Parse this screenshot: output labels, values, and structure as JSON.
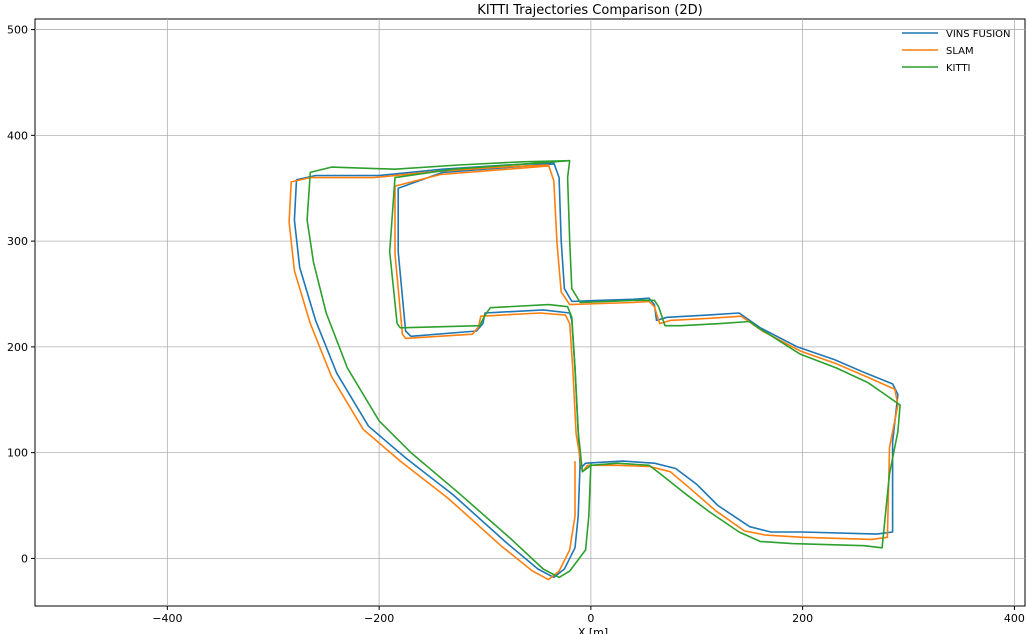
{
  "chart_data": {
    "type": "line",
    "title": "KITTI Trajectories Comparison (2D)",
    "xlabel": "X [m]",
    "ylabel": "",
    "xlim": [
      -525,
      410
    ],
    "ylim": [
      -45,
      510
    ],
    "xticks": [
      -400,
      -200,
      0,
      200,
      400
    ],
    "yticks": [
      0,
      100,
      200,
      300,
      400,
      500
    ],
    "grid": true,
    "legend_position": "top-right",
    "series": [
      {
        "name": "VINS FUSION",
        "color": "#1f77b4",
        "points": [
          [
            -10,
            95
          ],
          [
            -12,
            40
          ],
          [
            -15,
            10
          ],
          [
            -25,
            -10
          ],
          [
            -35,
            -18
          ],
          [
            -50,
            -10
          ],
          [
            -80,
            15
          ],
          [
            -130,
            60
          ],
          [
            -175,
            95
          ],
          [
            -210,
            125
          ],
          [
            -240,
            175
          ],
          [
            -260,
            225
          ],
          [
            -275,
            275
          ],
          [
            -280,
            320
          ],
          [
            -278,
            358
          ],
          [
            -260,
            362
          ],
          [
            -200,
            362
          ],
          [
            -140,
            368
          ],
          [
            -80,
            372
          ],
          [
            -35,
            374
          ],
          [
            -30,
            360
          ],
          [
            -28,
            300
          ],
          [
            -25,
            255
          ],
          [
            -18,
            243
          ],
          [
            10,
            244
          ],
          [
            40,
            245
          ],
          [
            55,
            246
          ],
          [
            60,
            240
          ],
          [
            62,
            225
          ],
          [
            72,
            228
          ],
          [
            110,
            230
          ],
          [
            140,
            232
          ],
          [
            150,
            225
          ],
          [
            160,
            218
          ],
          [
            195,
            200
          ],
          [
            230,
            188
          ],
          [
            260,
            175
          ],
          [
            285,
            165
          ],
          [
            290,
            155
          ],
          [
            285,
            110
          ],
          [
            285,
            25
          ],
          [
            270,
            23
          ],
          [
            200,
            25
          ],
          [
            170,
            25
          ],
          [
            150,
            30
          ],
          [
            120,
            50
          ],
          [
            100,
            70
          ],
          [
            80,
            85
          ],
          [
            60,
            90
          ],
          [
            30,
            92
          ],
          [
            -5,
            90
          ],
          [
            -10,
            85
          ],
          [
            -12,
            120
          ],
          [
            -15,
            180
          ],
          [
            -18,
            225
          ],
          [
            -20,
            232
          ],
          [
            -45,
            235
          ],
          [
            -100,
            232
          ],
          [
            -102,
            222
          ],
          [
            -108,
            215
          ],
          [
            -170,
            210
          ],
          [
            -175,
            215
          ],
          [
            -182,
            290
          ],
          [
            -182,
            350
          ],
          [
            -140,
            365
          ],
          [
            -35,
            373
          ]
        ]
      },
      {
        "name": "SLAM",
        "color": "#ff7f0e",
        "points": [
          [
            -15,
            92
          ],
          [
            -15,
            40
          ],
          [
            -20,
            8
          ],
          [
            -30,
            -12
          ],
          [
            -40,
            -20
          ],
          [
            -55,
            -12
          ],
          [
            -85,
            12
          ],
          [
            -135,
            57
          ],
          [
            -180,
            92
          ],
          [
            -215,
            122
          ],
          [
            -245,
            172
          ],
          [
            -265,
            222
          ],
          [
            -280,
            272
          ],
          [
            -285,
            318
          ],
          [
            -283,
            356
          ],
          [
            -265,
            360
          ],
          [
            -205,
            360
          ],
          [
            -145,
            366
          ],
          [
            -85,
            370
          ],
          [
            -40,
            372
          ],
          [
            -35,
            357
          ],
          [
            -32,
            298
          ],
          [
            -28,
            252
          ],
          [
            -20,
            240
          ],
          [
            10,
            241
          ],
          [
            40,
            242
          ],
          [
            55,
            243
          ],
          [
            60,
            238
          ],
          [
            65,
            222
          ],
          [
            75,
            225
          ],
          [
            112,
            227
          ],
          [
            142,
            229
          ],
          [
            152,
            222
          ],
          [
            162,
            215
          ],
          [
            198,
            196
          ],
          [
            232,
            184
          ],
          [
            262,
            171
          ],
          [
            287,
            160
          ],
          [
            290,
            145
          ],
          [
            282,
            105
          ],
          [
            280,
            20
          ],
          [
            265,
            18
          ],
          [
            200,
            20
          ],
          [
            165,
            22
          ],
          [
            145,
            26
          ],
          [
            118,
            45
          ],
          [
            95,
            65
          ],
          [
            75,
            82
          ],
          [
            55,
            87
          ],
          [
            25,
            88
          ],
          [
            -3,
            88
          ],
          [
            -8,
            82
          ],
          [
            -14,
            118
          ],
          [
            -17,
            178
          ],
          [
            -20,
            222
          ],
          [
            -24,
            230
          ],
          [
            -48,
            232
          ],
          [
            -104,
            229
          ],
          [
            -106,
            219
          ],
          [
            -112,
            212
          ],
          [
            -175,
            208
          ],
          [
            -178,
            212
          ],
          [
            -185,
            288
          ],
          [
            -185,
            352
          ],
          [
            -142,
            363
          ],
          [
            -40,
            371
          ]
        ]
      },
      {
        "name": "KITTI",
        "color": "#2ca02c",
        "points": [
          [
            0,
            90
          ],
          [
            -2,
            40
          ],
          [
            -5,
            8
          ],
          [
            -20,
            -12
          ],
          [
            -30,
            -18
          ],
          [
            -45,
            -10
          ],
          [
            -75,
            18
          ],
          [
            -125,
            62
          ],
          [
            -170,
            100
          ],
          [
            -200,
            130
          ],
          [
            -230,
            180
          ],
          [
            -250,
            232
          ],
          [
            -262,
            280
          ],
          [
            -268,
            320
          ],
          [
            -265,
            365
          ],
          [
            -245,
            370
          ],
          [
            -185,
            368
          ],
          [
            -125,
            372
          ],
          [
            -65,
            375
          ],
          [
            -20,
            376
          ],
          [
            -22,
            360
          ],
          [
            -20,
            300
          ],
          [
            -18,
            255
          ],
          [
            -10,
            242
          ],
          [
            15,
            243
          ],
          [
            45,
            244
          ],
          [
            60,
            244
          ],
          [
            64,
            238
          ],
          [
            70,
            220
          ],
          [
            85,
            220
          ],
          [
            122,
            222
          ],
          [
            150,
            224
          ],
          [
            158,
            218
          ],
          [
            168,
            212
          ],
          [
            198,
            193
          ],
          [
            232,
            180
          ],
          [
            262,
            166
          ],
          [
            292,
            145
          ],
          [
            290,
            120
          ],
          [
            282,
            80
          ],
          [
            275,
            10
          ],
          [
            258,
            12
          ],
          [
            190,
            14
          ],
          [
            160,
            16
          ],
          [
            140,
            25
          ],
          [
            112,
            44
          ],
          [
            88,
            62
          ],
          [
            68,
            78
          ],
          [
            55,
            88
          ],
          [
            25,
            90
          ],
          [
            0,
            88
          ],
          [
            -8,
            82
          ],
          [
            -12,
            120
          ],
          [
            -15,
            180
          ],
          [
            -18,
            228
          ],
          [
            -22,
            238
          ],
          [
            -40,
            240
          ],
          [
            -95,
            237
          ],
          [
            -100,
            230
          ],
          [
            -105,
            220
          ],
          [
            -180,
            218
          ],
          [
            -183,
            222
          ],
          [
            -190,
            290
          ],
          [
            -185,
            360
          ],
          [
            -130,
            368
          ],
          [
            -20,
            376
          ]
        ]
      }
    ]
  }
}
